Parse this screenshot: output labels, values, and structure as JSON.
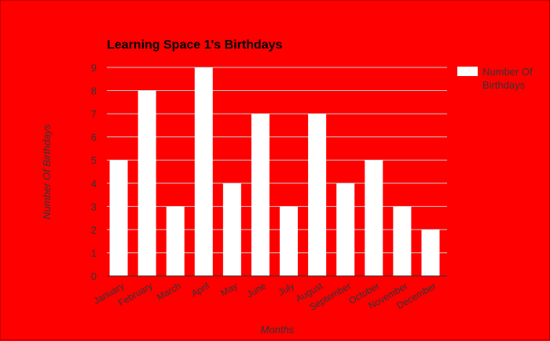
{
  "chart_data": {
    "type": "bar",
    "title": "Learning Space 1's Birthdays",
    "xlabel": "Months",
    "ylabel": "Number Of Birthdays",
    "categories": [
      "January",
      "February",
      "March",
      "April",
      "May",
      "June",
      "July",
      "August",
      "September",
      "October",
      "November",
      "December"
    ],
    "series": [
      {
        "name": "Number Of Birthdays",
        "values": [
          5,
          8,
          3,
          9,
          4,
          7,
          3,
          7,
          4,
          5,
          3,
          2
        ]
      }
    ],
    "ylim": [
      0,
      9
    ],
    "yticks": [
      0,
      1,
      2,
      3,
      4,
      5,
      6,
      7,
      8,
      9
    ],
    "grid": true,
    "legend": "right",
    "colors": {
      "background": "#ff0000",
      "bar": "#ffffff",
      "grid": "#cccccc",
      "text": "#333333"
    }
  }
}
